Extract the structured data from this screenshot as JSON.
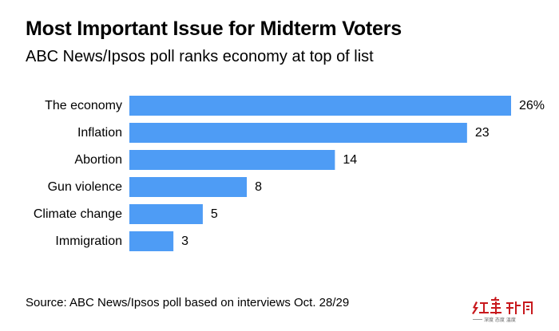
{
  "title": "Most Important Issue for Midterm Voters",
  "subtitle": "ABC News/Ipsos poll ranks economy at top of list",
  "source": "Source: ABC News/Ipsos poll based on interviews Oct. 28/29",
  "watermark": {
    "brand": "红星新闻",
    "tagline": "深度 态度 温度",
    "brand_color": "#c8191d"
  },
  "colors": {
    "bar": "#4e9cf5",
    "text": "#000000"
  },
  "chart_data": {
    "type": "bar",
    "orientation": "horizontal",
    "categories": [
      "The economy",
      "Inflation",
      "Abortion",
      "Gun violence",
      "Climate change",
      "Immigration"
    ],
    "values": [
      26,
      23,
      14,
      8,
      5,
      3
    ],
    "value_labels": [
      "26%",
      "23",
      "14",
      "8",
      "5",
      "3"
    ],
    "unit": "%",
    "xlim": [
      0,
      26
    ],
    "grid": false,
    "legend": "none"
  }
}
